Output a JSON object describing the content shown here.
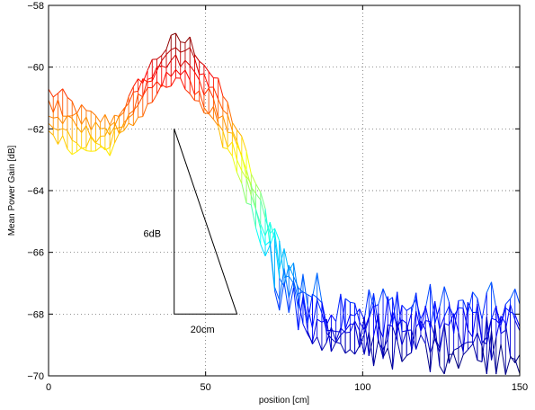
{
  "chart_data": {
    "type": "line",
    "title": "",
    "xlabel": "position [cm]",
    "ylabel": "Mean Power Gain [dB]",
    "xlim": [
      0,
      150
    ],
    "ylim": [
      -70,
      -58
    ],
    "xticks": [
      0,
      50,
      100,
      150
    ],
    "yticks": [
      -70,
      -68,
      -66,
      -64,
      -62,
      -60,
      -58
    ],
    "xtick_labels": [
      "0",
      "50",
      "100",
      "150"
    ],
    "ytick_labels": [
      "−70",
      "−68",
      "−66",
      "−64",
      "−62",
      "−60",
      "−58"
    ],
    "grid": true,
    "legend": "none",
    "colormap": "jet",
    "series_count": 5,
    "trend": {
      "x": [
        0,
        5,
        10,
        15,
        20,
        25,
        30,
        35,
        40,
        45,
        50,
        55,
        60,
        65,
        70,
        75,
        80,
        85,
        90,
        100,
        110,
        120,
        130,
        140,
        150
      ],
      "upper": [
        -60.8,
        -61.0,
        -61.4,
        -61.7,
        -61.7,
        -61.2,
        -60.3,
        -59.6,
        -59.1,
        -59.2,
        -59.9,
        -60.8,
        -62.0,
        -63.5,
        -65.0,
        -66.2,
        -67.0,
        -67.4,
        -67.6,
        -67.7,
        -67.8,
        -67.8,
        -67.8,
        -67.8,
        -67.8
      ],
      "lower": [
        -62.3,
        -62.5,
        -62.7,
        -62.7,
        -62.6,
        -62.1,
        -61.4,
        -60.8,
        -60.5,
        -60.8,
        -61.6,
        -62.3,
        -63.3,
        -64.8,
        -66.2,
        -67.4,
        -68.1,
        -68.6,
        -68.8,
        -69.0,
        -69.0,
        -69.1,
        -69.1,
        -69.1,
        -69.2
      ]
    },
    "annotations": [
      {
        "type": "triangle",
        "vertices": [
          [
            40,
            -62
          ],
          [
            40,
            -68
          ],
          [
            60,
            -68
          ]
        ]
      },
      {
        "text": "6dB",
        "x": 33,
        "y": -65.5
      },
      {
        "text": "20cm",
        "x": 49,
        "y": -68.6
      }
    ]
  }
}
